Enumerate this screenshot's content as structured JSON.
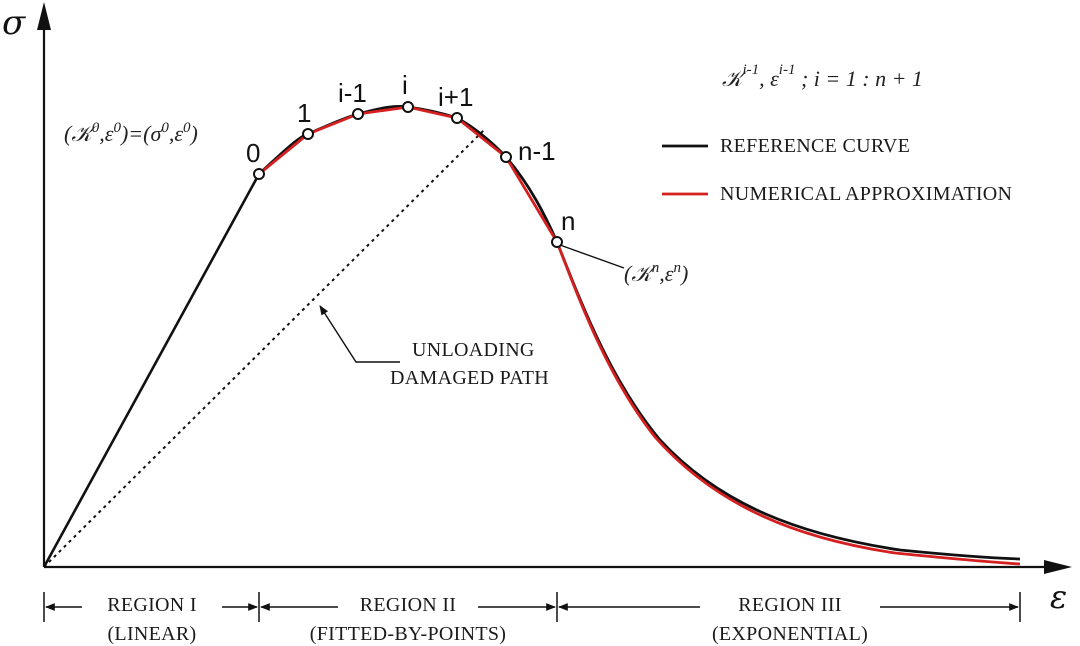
{
  "axes": {
    "y_label": "σ",
    "x_label": "ε"
  },
  "colors": {
    "reference": "#111111",
    "approximation": "#d42020",
    "axis": "#111111"
  },
  "points": {
    "p0": "0",
    "p1": "1",
    "p_im1": "i-1",
    "p_i": "i",
    "p_ip1": "i+1",
    "p_nm1": "n-1",
    "p_n": "n"
  },
  "annotations": {
    "start_point": {
      "k": "𝒦",
      "k_sup": "0",
      "comma1": ",ε",
      "eps_sup": "0",
      "mid": ")=(σ",
      "sigma_sup": "0",
      "comma2": ",ε",
      "eps_sup2": "0",
      "open": "(",
      "close": ")"
    },
    "end_point": {
      "open": "(",
      "k": "𝒦",
      "k_sup": "n",
      "comma": ",ε",
      "eps_sup": "n",
      "close": ")"
    },
    "index_formula": {
      "k": "𝒦",
      "k_sup": "i-1",
      "comma": ", ε",
      "eps_sup": "i-1",
      "rest": " ; i = 1 : n + 1"
    },
    "unloading_line1": "UNLOADING",
    "unloading_line2": "DAMAGED PATH"
  },
  "legend": {
    "reference": "REFERENCE CURVE",
    "approximation": "NUMERICAL APPROXIMATION"
  },
  "regions": [
    {
      "name": "REGION I",
      "desc": "(LINEAR)"
    },
    {
      "name": "REGION II",
      "desc": "(FITTED-BY-POINTS)"
    },
    {
      "name": "REGION III",
      "desc": "(EXPONENTIAL)"
    }
  ]
}
